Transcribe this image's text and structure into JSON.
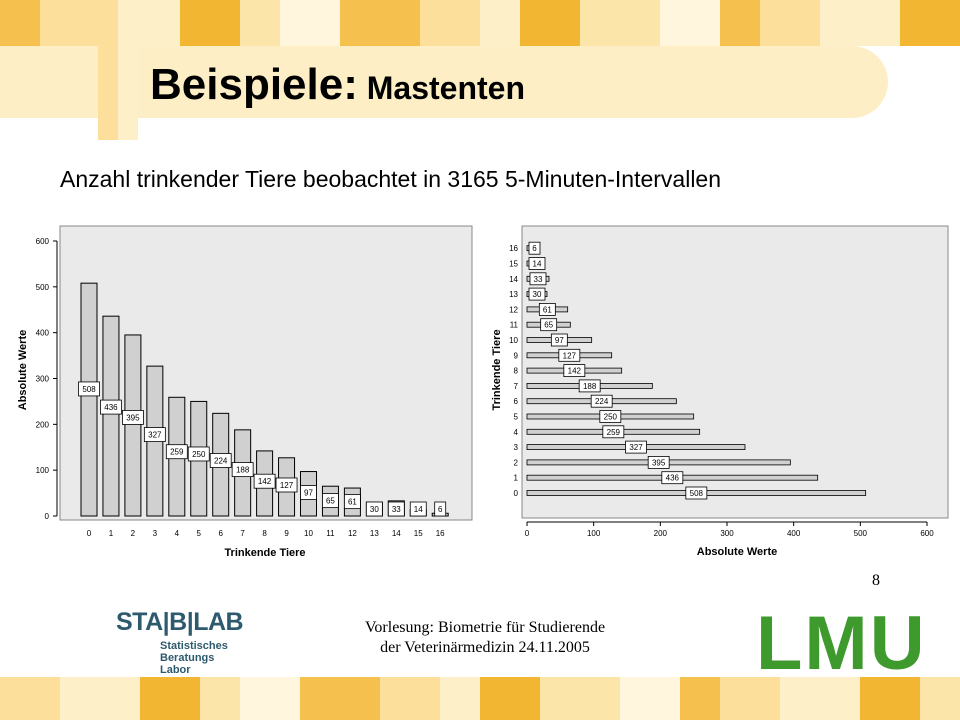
{
  "header": {
    "title_main": "Beispiele:",
    "title_sub": "Mastenten",
    "stripe_colors": [
      "#f6c04e",
      "#fbdf9a",
      "#fdefc8",
      "#f3b633",
      "#fce5a8",
      "#fff6dd"
    ]
  },
  "subtitle": "Anzahl trinkender Tiere beobachtet in 3165 5-Minuten-Intervallen",
  "chart_data": [
    {
      "type": "bar",
      "orientation": "vertical",
      "categories": [
        "0",
        "1",
        "2",
        "3",
        "4",
        "5",
        "6",
        "7",
        "8",
        "9",
        "10",
        "11",
        "12",
        "13",
        "14",
        "15",
        "16"
      ],
      "values": [
        508,
        436,
        395,
        327,
        259,
        250,
        224,
        188,
        142,
        127,
        97,
        65,
        61,
        30,
        33,
        14,
        6
      ],
      "xlabel": "Trinkende Tiere",
      "ylabel": "Absolute Werte",
      "ylim": [
        0,
        600
      ],
      "yticks": [
        "0",
        "100",
        "200",
        "300",
        "400",
        "500",
        "600"
      ],
      "data_labels": true,
      "plot_background": "#eaeaea",
      "bar_color": "#d0d0d0"
    },
    {
      "type": "bar",
      "orientation": "horizontal",
      "categories": [
        "0",
        "1",
        "2",
        "3",
        "4",
        "5",
        "6",
        "7",
        "8",
        "9",
        "10",
        "11",
        "12",
        "13",
        "14",
        "15",
        "16"
      ],
      "values": [
        508,
        436,
        395,
        327,
        259,
        250,
        224,
        188,
        142,
        127,
        97,
        65,
        61,
        30,
        33,
        14,
        6
      ],
      "xlabel": "Absolute Werte",
      "ylabel": "Trinkende Tiere",
      "xlim": [
        0,
        600
      ],
      "xticks": [
        "0",
        "100",
        "200",
        "300",
        "400",
        "500",
        "600"
      ],
      "data_labels": true,
      "plot_background": "#eaeaea",
      "bar_color": "#d0d0d0"
    }
  ],
  "page_number": "8",
  "footer": {
    "line1": "Vorlesung: Biometrie für Studierende",
    "line2": "der Veterinärmedizin 24.11.2005"
  },
  "logos": {
    "stablab_name": "STA|B|LAB",
    "stablab_lines": [
      "Statistisches",
      "Beratungs",
      "Labor"
    ],
    "lmu": "LMU",
    "stablab_color": "#2e5a6e",
    "lmu_color": "#3f9a2e"
  }
}
